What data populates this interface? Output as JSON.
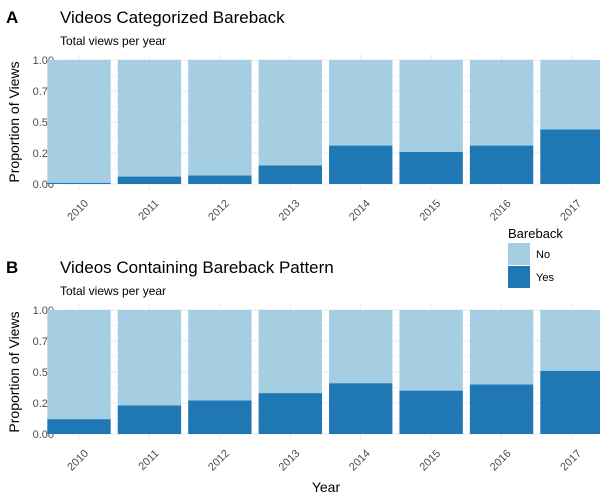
{
  "colors": {
    "no": "#a6cee3",
    "yes": "#1f78b4"
  },
  "x_axis_title": "Year",
  "legend": {
    "title": "Bareback",
    "entries": [
      {
        "label": "No",
        "color": "#a6cee3"
      },
      {
        "label": "Yes",
        "color": "#1f78b4"
      }
    ]
  },
  "chart_data": [
    {
      "type": "bar",
      "stacked": true,
      "panel": "A",
      "title": "Videos Categorized Bareback",
      "subtitle": "Total views per year",
      "ylabel": "Proportion of Views",
      "xlabel": "",
      "ylim": [
        0,
        1
      ],
      "yticks": [
        "0.00",
        "0.25",
        "0.50",
        "0.75",
        "1.00"
      ],
      "categories": [
        "2010",
        "2011",
        "2012",
        "2013",
        "2014",
        "2015",
        "2016",
        "2017"
      ],
      "series": [
        {
          "name": "Yes",
          "values": [
            0.01,
            0.06,
            0.07,
            0.15,
            0.31,
            0.26,
            0.31,
            0.44
          ]
        },
        {
          "name": "No",
          "values": [
            0.99,
            0.94,
            0.93,
            0.85,
            0.69,
            0.74,
            0.69,
            0.56
          ]
        }
      ]
    },
    {
      "type": "bar",
      "stacked": true,
      "panel": "B",
      "title": "Videos Containing Bareback Pattern",
      "subtitle": "Total views per year",
      "ylabel": "Proportion of Views",
      "xlabel": "Year",
      "ylim": [
        0,
        1
      ],
      "yticks": [
        "0.00",
        "0.25",
        "0.50",
        "0.75",
        "1.00"
      ],
      "categories": [
        "2010",
        "2011",
        "2012",
        "2013",
        "2014",
        "2015",
        "2016",
        "2017"
      ],
      "series": [
        {
          "name": "Yes",
          "values": [
            0.12,
            0.23,
            0.27,
            0.33,
            0.41,
            0.35,
            0.4,
            0.51
          ]
        },
        {
          "name": "No",
          "values": [
            0.88,
            0.77,
            0.73,
            0.67,
            0.59,
            0.65,
            0.6,
            0.49
          ]
        }
      ]
    }
  ]
}
